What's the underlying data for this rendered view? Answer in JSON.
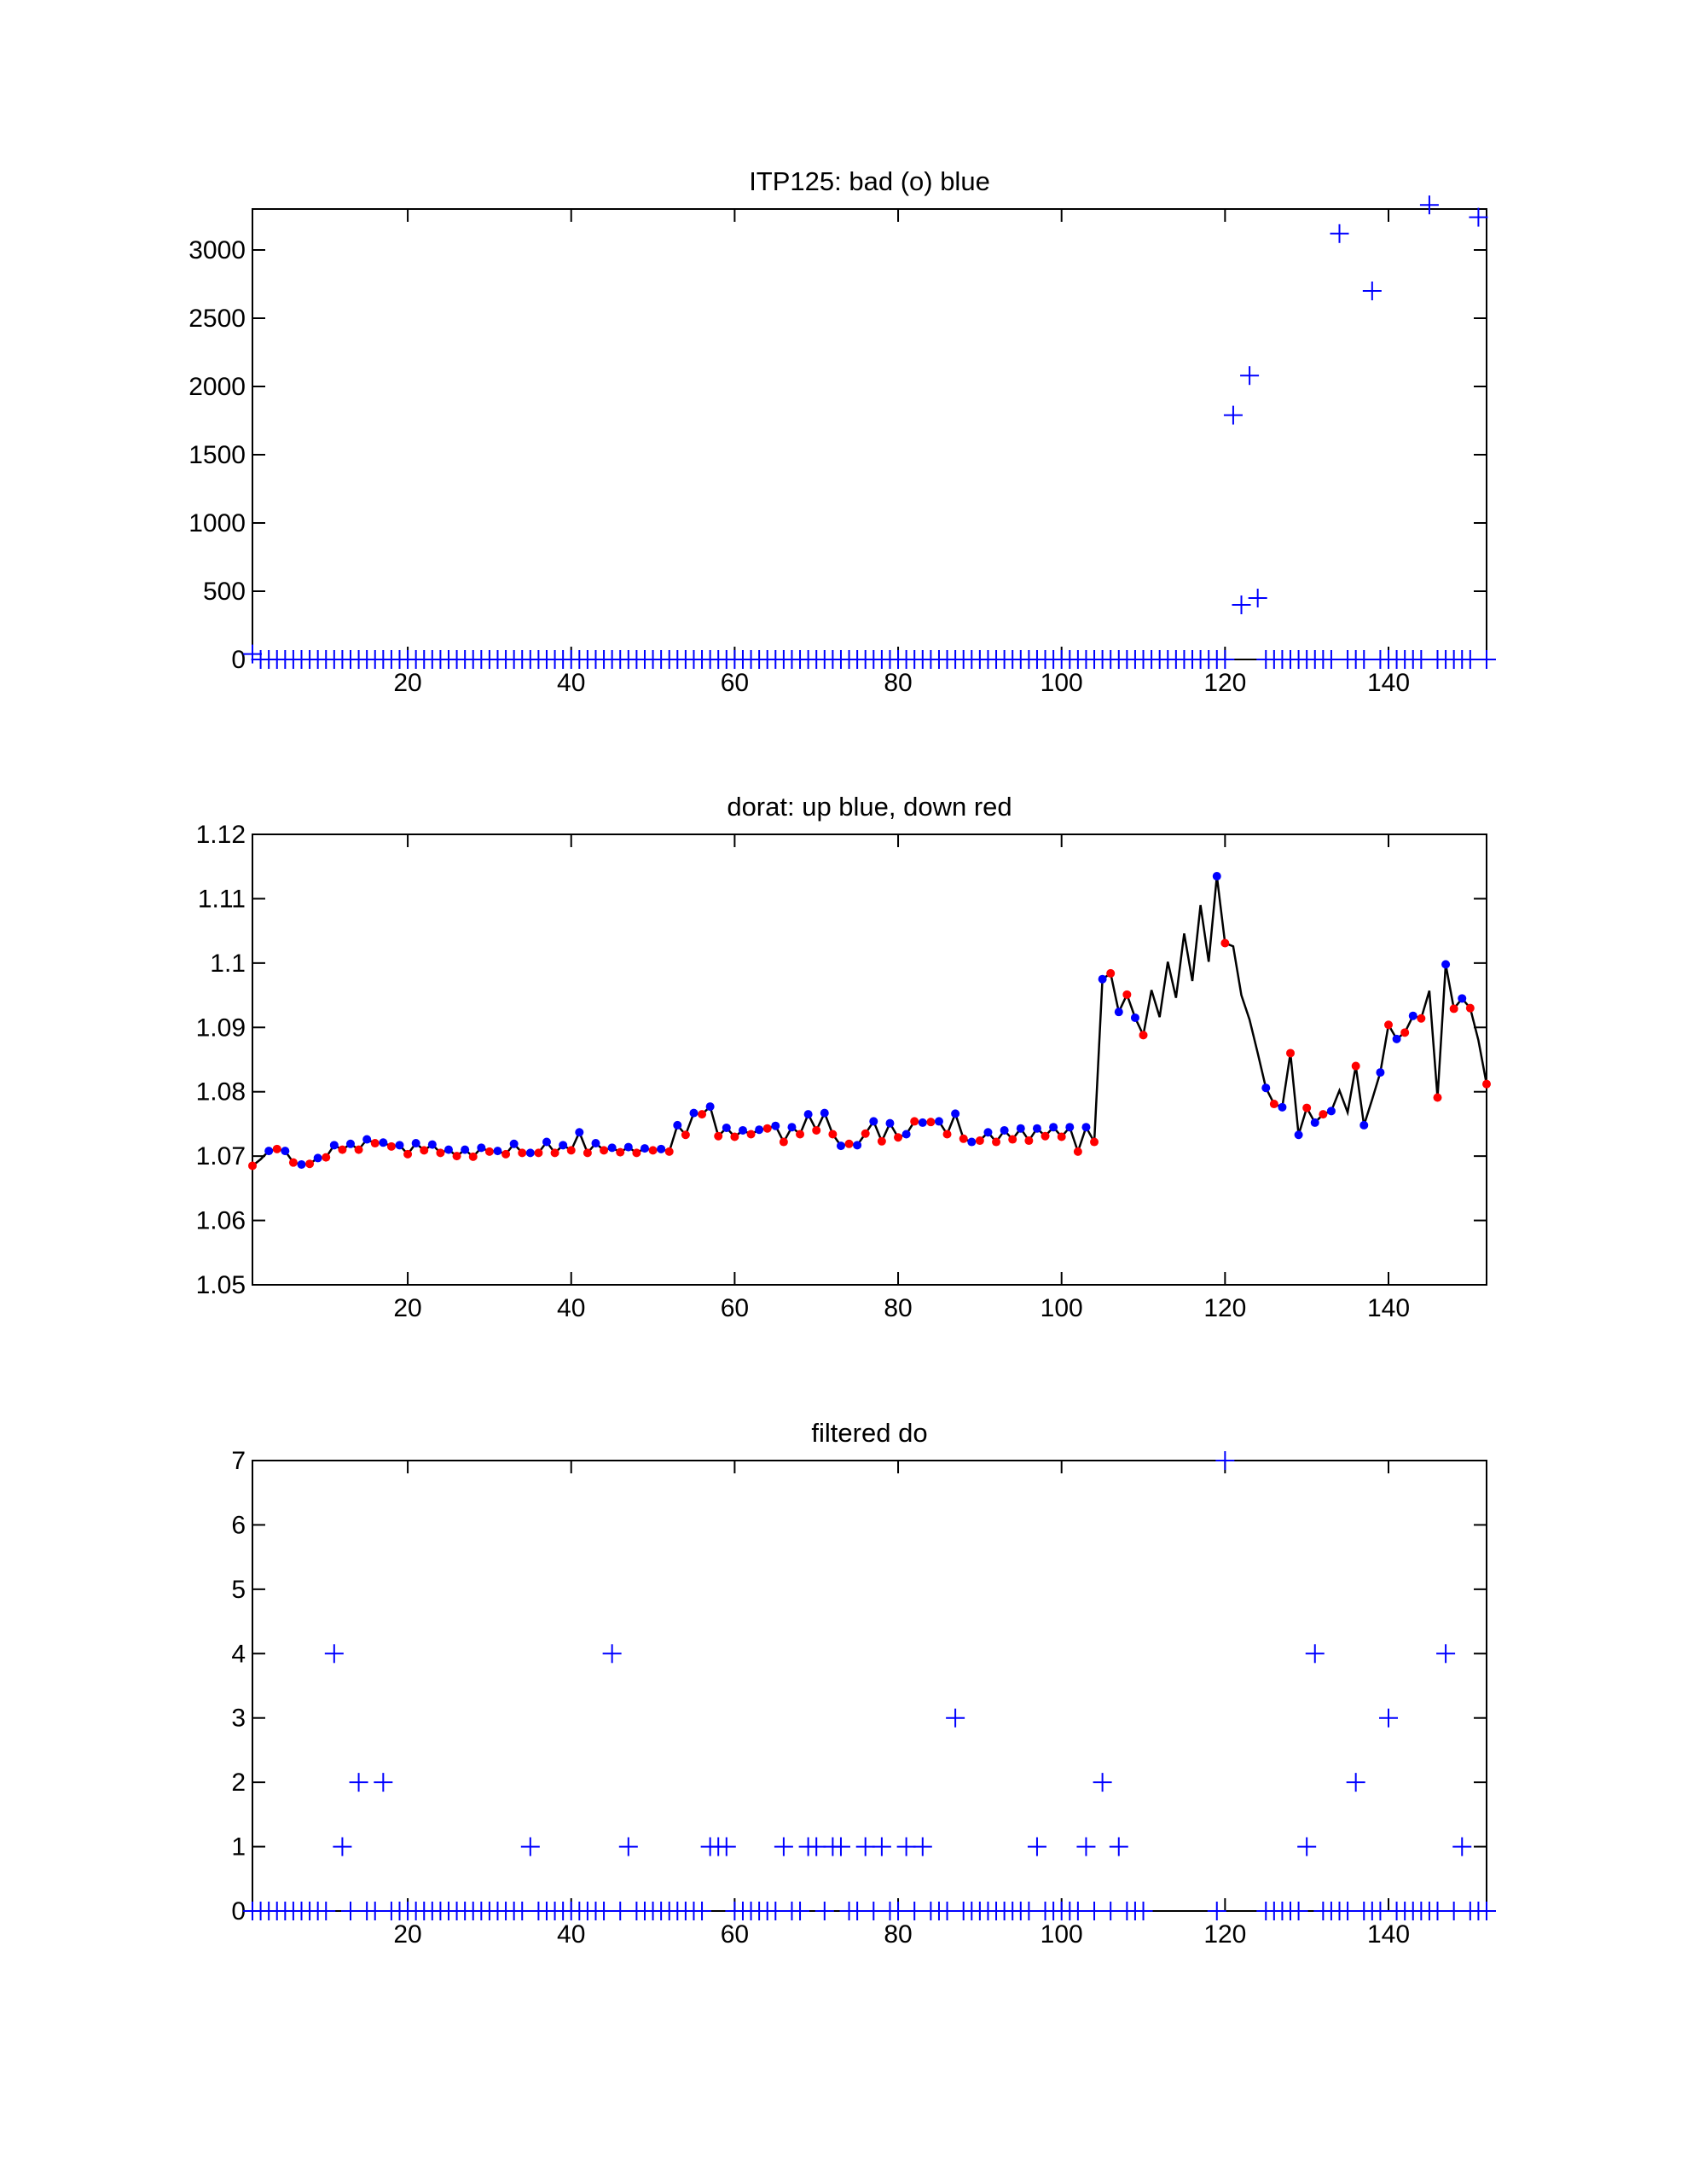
{
  "chart_data": [
    {
      "type": "scatter",
      "title": "ITP125: bad (o) blue",
      "xlim": [
        1,
        152
      ],
      "ylim": [
        0,
        3300
      ],
      "xticks": [
        20,
        40,
        60,
        80,
        100,
        120,
        140
      ],
      "yticks": [
        0,
        500,
        1000,
        1500,
        2000,
        2500,
        3000
      ],
      "marker": "+",
      "color": "#0000ff",
      "points_nonzero": [
        [
          1,
          40
        ],
        [
          121,
          1790
        ],
        [
          122,
          400
        ],
        [
          123,
          2080
        ],
        [
          124,
          450
        ],
        [
          134,
          3120
        ],
        [
          138,
          2700
        ],
        [
          145,
          3330
        ],
        [
          151,
          3240
        ]
      ],
      "zero_missing": [],
      "grid": false
    },
    {
      "type": "line",
      "title": "dorat: up blue, down red",
      "xlim": [
        1,
        152
      ],
      "ylim": [
        1.05,
        1.12
      ],
      "xticks": [
        20,
        40,
        60,
        80,
        100,
        120,
        140
      ],
      "yticks": [
        1.05,
        1.06,
        1.07,
        1.08,
        1.09,
        1.1,
        1.11,
        1.12
      ],
      "ytick_labels": [
        "1.05",
        "1.06",
        "1.07",
        "1.08",
        "1.09",
        "1.1",
        "1.11",
        "1.12"
      ],
      "line_color": "#000000",
      "up_color": "#0000ff",
      "down_color": "#ff0000",
      "values": [
        1.0685,
        1.0695,
        1.0708,
        1.0711,
        1.0708,
        1.069,
        1.0687,
        1.0688,
        1.0697,
        1.0698,
        1.0717,
        1.071,
        1.0719,
        1.071,
        1.0726,
        1.072,
        1.0721,
        1.0715,
        1.0717,
        1.0703,
        1.072,
        1.0709,
        1.0718,
        1.0705,
        1.071,
        1.07,
        1.071,
        1.0699,
        1.0713,
        1.0707,
        1.0708,
        1.0703,
        1.0719,
        1.0705,
        1.0705,
        1.0705,
        1.0722,
        1.0705,
        1.0717,
        1.0709,
        1.0737,
        1.0705,
        1.072,
        1.0709,
        1.0713,
        1.0706,
        1.0714,
        1.0705,
        1.0712,
        1.0709,
        1.0711,
        1.0707,
        1.0748,
        1.0733,
        1.0767,
        1.0765,
        1.0777,
        1.0731,
        1.0744,
        1.073,
        1.074,
        1.0734,
        1.0741,
        1.0743,
        1.0747,
        1.0722,
        1.0745,
        1.0734,
        1.0765,
        1.074,
        1.0767,
        1.0734,
        1.0716,
        1.0719,
        1.0717,
        1.0735,
        1.0754,
        1.0723,
        1.0751,
        1.0729,
        1.0734,
        1.0754,
        1.0752,
        1.0753,
        1.0754,
        1.0734,
        1.0766,
        1.0727,
        1.0722,
        1.0724,
        1.0737,
        1.0722,
        1.074,
        1.0726,
        1.0743,
        1.0724,
        1.0743,
        1.0731,
        1.0745,
        1.073,
        1.0745,
        1.0707,
        1.0745,
        1.0722,
        1.0975,
        1.0984,
        1.0924,
        1.0951,
        1.0915,
        1.0888,
        1.0958,
        1.0916,
        1.1002,
        1.0946,
        1.1046,
        1.0972,
        1.109,
        1.1002,
        1.1135,
        1.1031,
        1.1026,
        1.095,
        1.0912,
        1.086,
        1.0806,
        1.0781,
        1.0776,
        1.086,
        1.0733,
        1.0775,
        1.0752,
        1.0765,
        1.077,
        1.0802,
        1.0768,
        1.084,
        1.0748,
        1.0788,
        1.083,
        1.0904,
        1.0882,
        1.0892,
        1.0918,
        1.0914,
        1.0957,
        1.0791,
        1.0998,
        1.0929,
        1.0945,
        1.093,
        1.088,
        1.0812
      ],
      "direction": [
        "d",
        "",
        "u",
        "d",
        "u",
        "d",
        "u",
        "d",
        "u",
        "d",
        "u",
        "d",
        "u",
        "d",
        "u",
        "d",
        "u",
        "d",
        "u",
        "d",
        "u",
        "d",
        "u",
        "d",
        "u",
        "d",
        "u",
        "d",
        "u",
        "d",
        "u",
        "d",
        "u",
        "d",
        "u",
        "d",
        "u",
        "d",
        "u",
        "d",
        "u",
        "d",
        "u",
        "d",
        "u",
        "d",
        "u",
        "d",
        "u",
        "d",
        "u",
        "d",
        "u",
        "d",
        "u",
        "d",
        "u",
        "d",
        "u",
        "d",
        "u",
        "d",
        "u",
        "d",
        "u",
        "d",
        "u",
        "d",
        "u",
        "d",
        "u",
        "d",
        "u",
        "d",
        "u",
        "d",
        "u",
        "d",
        "u",
        "d",
        "u",
        "d",
        "u",
        "d",
        "u",
        "d",
        "u",
        "d",
        "u",
        "d",
        "u",
        "d",
        "u",
        "d",
        "u",
        "d",
        "u",
        "d",
        "u",
        "d",
        "u",
        "d",
        "u",
        "d",
        "u",
        "d",
        "u",
        "d",
        "u",
        "d",
        "",
        "",
        "",
        "",
        "",
        "",
        "",
        "",
        "u",
        "d",
        "",
        "",
        "",
        "",
        "u",
        "d",
        "u",
        "d",
        "u",
        "d",
        "u",
        "d",
        "u",
        "",
        "",
        "d",
        "u",
        "",
        "u",
        "d",
        "u",
        "d",
        "u",
        "d",
        "",
        "d",
        "u",
        "d",
        "u",
        "d",
        "",
        "d"
      ],
      "grid": false
    },
    {
      "type": "scatter",
      "title": "filtered do",
      "xlim": [
        1,
        152
      ],
      "ylim": [
        0,
        7
      ],
      "xticks": [
        20,
        40,
        60,
        80,
        100,
        120,
        140
      ],
      "yticks": [
        0,
        1,
        2,
        3,
        4,
        5,
        6,
        7
      ],
      "marker": "+",
      "color": "#0000ff",
      "points_nonzero": [
        [
          11,
          4
        ],
        [
          12,
          1
        ],
        [
          14,
          2
        ],
        [
          17,
          2
        ],
        [
          35,
          1
        ],
        [
          45,
          4
        ],
        [
          47,
          1
        ],
        [
          57,
          1
        ],
        [
          58,
          1
        ],
        [
          59,
          1
        ],
        [
          66,
          1
        ],
        [
          69,
          1
        ],
        [
          70,
          1
        ],
        [
          72,
          1
        ],
        [
          73,
          1
        ],
        [
          76,
          1
        ],
        [
          78,
          1
        ],
        [
          81,
          1
        ],
        [
          83,
          1
        ],
        [
          87,
          3
        ],
        [
          97,
          1
        ],
        [
          103,
          1
        ],
        [
          105,
          2
        ],
        [
          107,
          1
        ],
        [
          120,
          7
        ],
        [
          130,
          1
        ],
        [
          131,
          4
        ],
        [
          136,
          2
        ],
        [
          140,
          3
        ],
        [
          147,
          4
        ],
        [
          149,
          1
        ]
      ],
      "zero_missing": [
        111,
        112,
        113,
        114,
        115,
        116,
        117,
        118,
        121,
        122,
        123,
        124
      ],
      "grid": false
    }
  ]
}
